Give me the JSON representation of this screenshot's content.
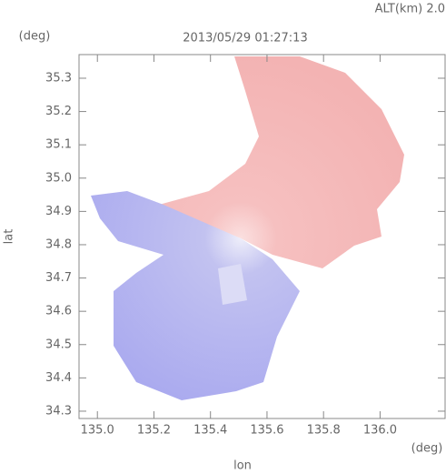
{
  "chart_data": {
    "type": "map",
    "title": "2013/05/29 01:27:13",
    "annotation": "ALT(km) 2.0",
    "x_label": "lon",
    "y_label": "lat",
    "x_unit": "(deg)",
    "y_unit": "(deg)",
    "xlim": [
      134.935,
      136.23
    ],
    "ylim": [
      34.278,
      35.371
    ],
    "xticks": [
      {
        "value": 135,
        "label": "135.0"
      },
      135.2,
      135.4,
      135.6,
      135.8,
      {
        "value": 136,
        "label": "136.0"
      }
    ],
    "yticks": [
      34.3,
      34.4,
      34.5,
      34.6,
      34.7,
      34.8,
      34.9,
      {
        "value": 35,
        "label": "35.0"
      },
      35.1,
      35.2,
      35.3
    ]
  }
}
